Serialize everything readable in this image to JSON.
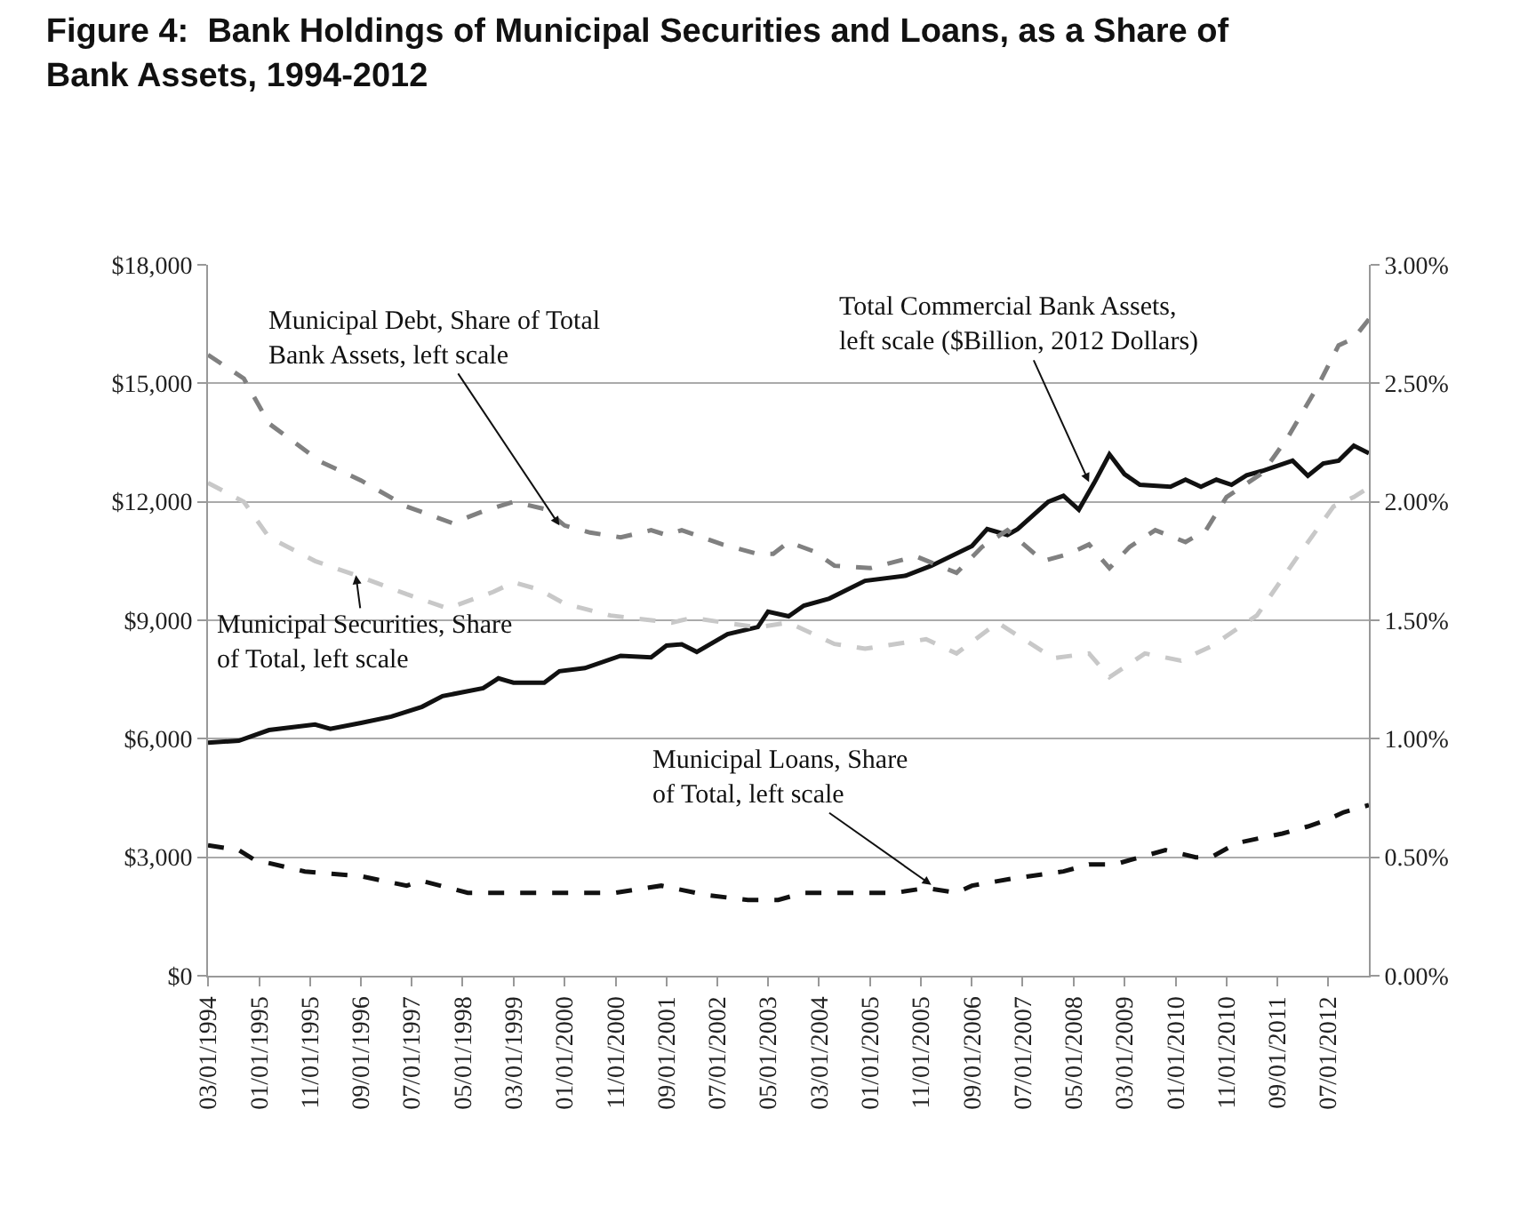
{
  "chart_data": {
    "type": "line",
    "title": "Figure 4:  Bank Holdings of Municipal Securities and Loans, as a Share of\nBank Assets, 1994-2012",
    "xlim": [
      "1994-03-01",
      "2013-03-01"
    ],
    "xticks": [
      {
        "value": "1994-03-01",
        "label": "03/01/1994"
      },
      {
        "value": "1995-01-01",
        "label": "01/01/1995"
      },
      {
        "value": "1995-11-01",
        "label": "11/01/1995"
      },
      {
        "value": "1996-09-01",
        "label": "09/01/1996"
      },
      {
        "value": "1997-07-01",
        "label": "07/01/1997"
      },
      {
        "value": "1998-05-01",
        "label": "05/01/1998"
      },
      {
        "value": "1999-03-01",
        "label": "03/01/1999"
      },
      {
        "value": "2000-01-01",
        "label": "01/01/2000"
      },
      {
        "value": "2000-11-01",
        "label": "11/01/2000"
      },
      {
        "value": "2001-09-01",
        "label": "09/01/2001"
      },
      {
        "value": "2002-07-01",
        "label": "07/01/2002"
      },
      {
        "value": "2003-05-01",
        "label": "05/01/2003"
      },
      {
        "value": "2004-03-01",
        "label": "03/01/2004"
      },
      {
        "value": "2005-01-01",
        "label": "01/01/2005"
      },
      {
        "value": "2005-11-01",
        "label": "11/01/2005"
      },
      {
        "value": "2006-09-01",
        "label": "09/01/2006"
      },
      {
        "value": "2007-07-01",
        "label": "07/01/2007"
      },
      {
        "value": "2008-05-01",
        "label": "05/01/2008"
      },
      {
        "value": "2009-03-01",
        "label": "03/01/2009"
      },
      {
        "value": "2010-01-01",
        "label": "01/01/2010"
      },
      {
        "value": "2010-11-01",
        "label": "11/01/2010"
      },
      {
        "value": "2011-09-01",
        "label": "09/01/2011"
      },
      {
        "value": "2012-07-01",
        "label": "07/01/2012"
      }
    ],
    "ylim": [
      0,
      18000
    ],
    "yticks": [
      {
        "value": 0,
        "label": "$0"
      },
      {
        "value": 3000,
        "label": "$3,000"
      },
      {
        "value": 6000,
        "label": "$6,000"
      },
      {
        "value": 9000,
        "label": "$9,000"
      },
      {
        "value": 12000,
        "label": "$12,000"
      },
      {
        "value": 15000,
        "label": "$15,000"
      },
      {
        "value": 18000,
        "label": "$18,000"
      }
    ],
    "y2lim": [
      0,
      3
    ],
    "y2ticks": [
      {
        "value": 0,
        "label": "0.00%"
      },
      {
        "value": 0.5,
        "label": "0.50%"
      },
      {
        "value": 1,
        "label": "1.00%"
      },
      {
        "value": 1.5,
        "label": "1.50%"
      },
      {
        "value": 2,
        "label": "2.00%"
      },
      {
        "value": 2.5,
        "label": "2.50%"
      },
      {
        "value": 3,
        "label": "3.00%"
      }
    ],
    "grid": "y",
    "marker": "none",
    "series": [
      {
        "color": "#111111",
        "line_style": "solid",
        "x": [
          "1994-03",
          "1994-09",
          "1995-03",
          "1995-12",
          "1996-03",
          "1996-09",
          "1997-03",
          "1997-09",
          "1998-01",
          "1998-09",
          "1998-12",
          "1999-03",
          "1999-09",
          "1999-12",
          "2000-05",
          "2000-12",
          "2001-06",
          "2001-09",
          "2001-12",
          "2002-03",
          "2002-09",
          "2003-03",
          "2003-05",
          "2003-09",
          "2003-12",
          "2004-05",
          "2004-12",
          "2005-08",
          "2006-01",
          "2006-09",
          "2006-12",
          "2007-04",
          "2007-06",
          "2007-12",
          "2008-03",
          "2008-06",
          "2008-09",
          "2008-12",
          "2009-03",
          "2009-06",
          "2009-12",
          "2010-03",
          "2010-06",
          "2010-09",
          "2010-12",
          "2011-03",
          "2011-06",
          "2011-12",
          "2012-03",
          "2012-06",
          "2012-09",
          "2012-12",
          "2013-03"
        ],
        "values": [
          5900,
          5950,
          6220,
          6360,
          6250,
          6400,
          6560,
          6810,
          7080,
          7280,
          7530,
          7420,
          7420,
          7710,
          7790,
          8100,
          8060,
          8360,
          8390,
          8200,
          8650,
          8830,
          9220,
          9100,
          9370,
          9550,
          10000,
          10130,
          10380,
          10880,
          11310,
          11160,
          11310,
          12000,
          12150,
          11800,
          12480,
          13200,
          12700,
          12430,
          12380,
          12560,
          12380,
          12560,
          12430,
          12670,
          12780,
          13040,
          12660,
          12970,
          13040,
          13420,
          13230
        ]
      },
      {
        "color": "#808080",
        "line_style": "dashed",
        "axis": "y2",
        "x": [
          "1994-03",
          "1994-10",
          "1995-03",
          "1996-01",
          "1996-09",
          "1997-06",
          "1998-03",
          "1998-09",
          "1999-03",
          "1999-09",
          "2000-01",
          "2000-06",
          "2000-12",
          "2001-06",
          "2001-09",
          "2001-12",
          "2002-08",
          "2003-03",
          "2003-06",
          "2003-09",
          "2004-02",
          "2004-06",
          "2005-01",
          "2005-10",
          "2006-06",
          "2006-11",
          "2007-04",
          "2007-11",
          "2008-04",
          "2008-08",
          "2008-12",
          "2009-04",
          "2009-09",
          "2010-03",
          "2010-07",
          "2010-11",
          "2011-06",
          "2011-11",
          "2012-05",
          "2012-09",
          "2012-12",
          "2013-03"
        ],
        "values": [
          2.62,
          2.52,
          2.33,
          2.17,
          2.09,
          1.98,
          1.91,
          1.96,
          2.0,
          1.97,
          1.9,
          1.87,
          1.85,
          1.88,
          1.86,
          1.88,
          1.82,
          1.78,
          1.78,
          1.83,
          1.79,
          1.73,
          1.72,
          1.77,
          1.7,
          1.81,
          1.88,
          1.75,
          1.78,
          1.82,
          1.72,
          1.81,
          1.88,
          1.83,
          1.88,
          2.02,
          2.12,
          2.27,
          2.49,
          2.66,
          2.69,
          2.77
        ]
      },
      {
        "color": "#c8c8c8",
        "line_style": "dashed",
        "axis": "y2",
        "x": [
          "1994-03",
          "1994-10",
          "1995-03",
          "1995-12",
          "1996-08",
          "1997-06",
          "1998-02",
          "1998-11",
          "1999-03",
          "1999-08",
          "2000-01",
          "2000-10",
          "2001-10",
          "2002-02",
          "2003-03",
          "2003-09",
          "2004-06",
          "2004-12",
          "2005-12",
          "2006-06",
          "2007-02",
          "2008-01",
          "2008-08",
          "2008-12",
          "2009-07",
          "2010-02",
          "2010-08",
          "2011-05",
          "2012-01",
          "2012-08",
          "2012-12",
          "2013-03"
        ],
        "values": [
          2.08,
          2.0,
          1.85,
          1.75,
          1.69,
          1.61,
          1.55,
          1.62,
          1.66,
          1.63,
          1.57,
          1.52,
          1.49,
          1.51,
          1.47,
          1.49,
          1.4,
          1.38,
          1.42,
          1.36,
          1.49,
          1.34,
          1.36,
          1.26,
          1.36,
          1.33,
          1.39,
          1.52,
          1.77,
          1.98,
          2.02,
          2.06
        ]
      },
      {
        "color": "#111111",
        "line_style": "dashed",
        "axis": "y2",
        "x": [
          "1994-03",
          "1994-09",
          "1994-12",
          "1995-10",
          "1996-09",
          "1997-06",
          "1997-09",
          "1998-06",
          "2000-01",
          "2000-11",
          "2001-08",
          "2002-05",
          "2003-01",
          "2003-07",
          "2003-12",
          "2004-10",
          "2005-06",
          "2005-12",
          "2006-06",
          "2006-09",
          "2007-05",
          "2008-03",
          "2008-08",
          "2009-01",
          "2009-11",
          "2010-05",
          "2010-08",
          "2011-01",
          "2011-10",
          "2012-03",
          "2012-07",
          "2012-10",
          "2013-03"
        ],
        "values": [
          0.55,
          0.53,
          0.49,
          0.44,
          0.42,
          0.38,
          0.4,
          0.35,
          0.35,
          0.35,
          0.38,
          0.34,
          0.32,
          0.32,
          0.35,
          0.35,
          0.35,
          0.37,
          0.35,
          0.38,
          0.41,
          0.44,
          0.47,
          0.47,
          0.53,
          0.5,
          0.5,
          0.56,
          0.6,
          0.63,
          0.66,
          0.69,
          0.72
        ]
      }
    ],
    "annotations": [
      {
        "text": "Municipal Debt, Share of Total\nBank Assets, left scale",
        "x": "1999-12",
        "y": 11400
      },
      {
        "text": "Total Commercial Bank Assets,\nleft scale ($Billion, 2012 Dollars)",
        "x": "2008-08",
        "y": 12500
      },
      {
        "text": "Municipal Securities, Share\nof Total, left scale",
        "x": "1996-08",
        "y": 10140
      },
      {
        "text": "Municipal Loans, Share\nof Total, left scale",
        "x": "2006-01",
        "y": 2300
      }
    ]
  }
}
